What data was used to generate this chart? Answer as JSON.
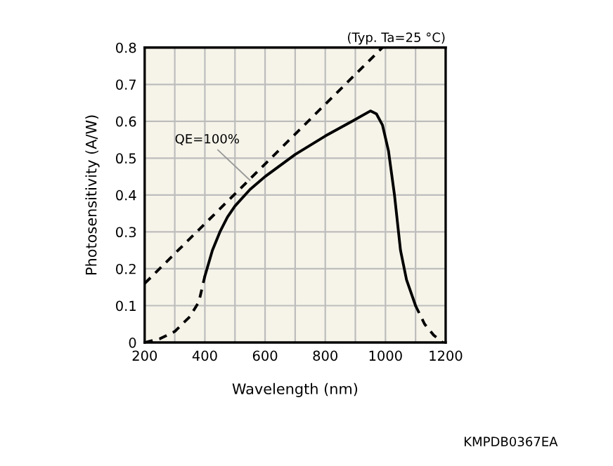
{
  "chart_data": {
    "type": "line",
    "xlabel": "Wavelength (nm)",
    "ylabel": "Photosensitivity (A/W)",
    "xlim": [
      200,
      1200
    ],
    "ylim": [
      0,
      0.8
    ],
    "xticks": [
      200,
      {
        "value": 300,
        "label": null
      },
      400,
      {
        "value": 500,
        "label": null
      },
      600,
      {
        "value": 700,
        "label": null
      },
      800,
      {
        "value": 900,
        "label": null
      },
      1000,
      {
        "value": 1100,
        "label": null
      },
      1200
    ],
    "yticks": [
      0,
      0.1,
      0.2,
      0.3,
      0.4,
      0.5,
      0.6,
      0.7,
      0.8
    ],
    "grid": true,
    "marker": "none",
    "series": [
      {
        "color": "#000000",
        "line_style": "dashed",
        "x": [
          200,
          990
        ],
        "values": [
          0.16,
          0.8
        ]
      },
      {
        "color": "#000000",
        "line_style": "solid",
        "x": [
          400,
          425,
          450,
          475,
          500,
          550,
          600,
          700,
          800,
          900,
          950,
          970,
          990,
          1010,
          1030,
          1050,
          1070,
          1100
        ],
        "values": [
          0.18,
          0.25,
          0.3,
          0.34,
          0.37,
          0.415,
          0.45,
          0.51,
          0.56,
          0.605,
          0.628,
          0.62,
          0.59,
          0.52,
          0.4,
          0.25,
          0.17,
          0.1
        ]
      },
      {
        "color": "#000000",
        "line_style": "dashed",
        "x": [
          200,
          250,
          300,
          350,
          380,
          400
        ],
        "values": [
          0,
          0.01,
          0.03,
          0.07,
          0.11,
          0.18
        ]
      },
      {
        "color": "#000000",
        "line_style": "dashed",
        "x": [
          1100,
          1130,
          1160,
          1190
        ],
        "values": [
          0.1,
          0.05,
          0.02,
          0
        ]
      }
    ],
    "annotations": [
      {
        "text": "QE=100%",
        "x": 550,
        "y": 0.44
      },
      "(Typ. Ta=25 °C)",
      "KMPDB0367EA"
    ]
  }
}
